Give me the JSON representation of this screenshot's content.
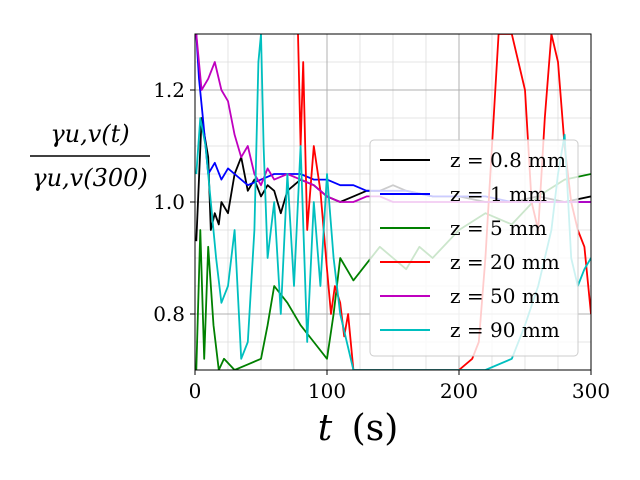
{
  "chart_data": {
    "type": "line",
    "xlabel_var": "t",
    "xlabel_unit": "(s)",
    "ylabel_numerator": "γu,v(t)",
    "ylabel_denominator": "γu,v(300)",
    "xlim": [
      0,
      300
    ],
    "ylim": [
      0.7,
      1.3
    ],
    "x_ticks": [
      0,
      100,
      200,
      300
    ],
    "y_ticks": [
      0.8,
      1.0,
      1.2
    ],
    "x_tick_labels": [
      "0",
      "100",
      "200",
      "300"
    ],
    "y_tick_labels": [
      "0.8",
      "1.0",
      "1.2"
    ],
    "grid": true,
    "legend_position": "right",
    "series": [
      {
        "name": "z = 0.8 mm",
        "color": "#000000",
        "x": [
          1,
          5,
          10,
          12,
          15,
          18,
          20,
          25,
          30,
          35,
          40,
          45,
          50,
          55,
          60,
          65,
          70,
          80,
          90,
          100,
          110,
          120,
          130,
          140,
          150,
          160,
          180,
          200,
          220,
          240,
          260,
          280,
          300
        ],
        "y": [
          0.93,
          1.15,
          1.08,
          0.95,
          0.98,
          0.96,
          1.0,
          0.98,
          1.05,
          1.08,
          1.02,
          1.04,
          1.01,
          1.03,
          1.02,
          0.98,
          1.02,
          1.04,
          1.03,
          1.01,
          1.0,
          1.01,
          1.02,
          1.02,
          1.03,
          1.02,
          1.01,
          1.01,
          1.0,
          1.0,
          1.01,
          1.0,
          1.01
        ]
      },
      {
        "name": "z = 1 mm",
        "color": "#0000ff",
        "x": [
          1,
          3,
          6,
          10,
          15,
          20,
          25,
          30,
          40,
          50,
          60,
          70,
          80,
          90,
          100,
          110,
          120,
          130,
          140,
          150,
          160,
          180,
          200,
          220,
          240,
          260,
          280,
          300
        ],
        "y": [
          1.3,
          1.22,
          1.15,
          1.05,
          1.07,
          1.04,
          1.06,
          1.05,
          1.03,
          1.04,
          1.05,
          1.05,
          1.05,
          1.04,
          1.04,
          1.03,
          1.03,
          1.02,
          1.02,
          1.02,
          1.02,
          1.01,
          1.01,
          1.01,
          1.0,
          1.0,
          1.0,
          1.0
        ]
      },
      {
        "name": "z = 5 mm",
        "color": "#008000",
        "x": [
          1,
          4,
          7,
          10,
          14,
          18,
          22,
          30,
          40,
          50,
          55,
          60,
          70,
          80,
          90,
          100,
          105,
          110,
          115,
          120,
          130,
          140,
          150,
          160,
          170,
          180,
          200,
          220,
          240,
          260,
          280,
          300
        ],
        "y": [
          0.7,
          0.95,
          0.72,
          0.92,
          0.78,
          0.7,
          0.72,
          0.7,
          0.71,
          0.72,
          0.78,
          0.85,
          0.82,
          0.78,
          0.75,
          0.72,
          0.8,
          0.9,
          0.88,
          0.86,
          0.89,
          0.92,
          0.9,
          0.88,
          0.92,
          0.9,
          0.95,
          0.98,
          0.96,
          1.01,
          1.04,
          1.05
        ]
      },
      {
        "name": "z = 20 mm",
        "color": "#ff0000",
        "x": [
          78,
          80,
          82,
          85,
          90,
          95,
          100,
          103,
          106,
          110,
          113,
          116,
          120,
          130,
          140,
          150,
          160,
          170,
          180,
          190,
          200,
          210,
          215,
          220,
          225,
          230,
          240,
          245,
          250,
          255,
          260,
          265,
          270,
          275,
          280,
          285,
          290,
          295,
          300
        ],
        "y": [
          1.3,
          1.1,
          1.25,
          0.95,
          1.1,
          1.02,
          0.88,
          0.8,
          0.85,
          0.82,
          0.76,
          0.8,
          0.7,
          0.7,
          0.7,
          0.7,
          0.7,
          0.7,
          0.7,
          0.7,
          0.7,
          0.72,
          0.75,
          0.9,
          1.1,
          1.3,
          1.3,
          1.25,
          1.2,
          1.0,
          0.95,
          1.15,
          1.3,
          1.25,
          1.1,
          1.0,
          0.95,
          0.92,
          0.8
        ]
      },
      {
        "name": "z = 50 mm",
        "color": "#bf00bf",
        "x": [
          1,
          5,
          10,
          15,
          20,
          25,
          30,
          35,
          40,
          45,
          50,
          55,
          60,
          70,
          80,
          90,
          100,
          110,
          120,
          130,
          140,
          150,
          160,
          180,
          200,
          220,
          240,
          260,
          280,
          300
        ],
        "y": [
          1.3,
          1.2,
          1.22,
          1.25,
          1.2,
          1.18,
          1.12,
          1.08,
          1.1,
          1.05,
          1.03,
          1.06,
          1.04,
          1.05,
          1.04,
          1.03,
          1.01,
          1.0,
          1.0,
          1.01,
          1.01,
          1.0,
          1.0,
          1.0,
          1.0,
          1.0,
          1.0,
          1.0,
          1.0,
          1.0
        ]
      },
      {
        "name": "z = 90 mm",
        "color": "#00bfbf",
        "x": [
          1,
          4,
          8,
          12,
          16,
          20,
          25,
          30,
          35,
          40,
          45,
          48,
          50,
          52,
          55,
          60,
          65,
          70,
          75,
          80,
          85,
          90,
          95,
          100,
          105,
          110,
          115,
          120,
          140,
          160,
          180,
          200,
          220,
          240,
          250,
          260,
          270,
          275,
          280,
          285,
          290,
          295,
          300
        ],
        "y": [
          1.05,
          1.15,
          1.1,
          1.0,
          0.9,
          0.82,
          0.85,
          0.95,
          0.72,
          0.75,
          0.95,
          1.25,
          1.3,
          1.1,
          0.9,
          1.0,
          0.8,
          1.05,
          0.85,
          1.1,
          0.75,
          1.0,
          0.85,
          1.05,
          0.9,
          0.8,
          0.75,
          0.7,
          0.7,
          0.7,
          0.7,
          0.7,
          0.7,
          0.72,
          0.78,
          0.85,
          0.95,
          1.05,
          1.12,
          0.9,
          0.85,
          0.88,
          0.9
        ]
      }
    ]
  }
}
